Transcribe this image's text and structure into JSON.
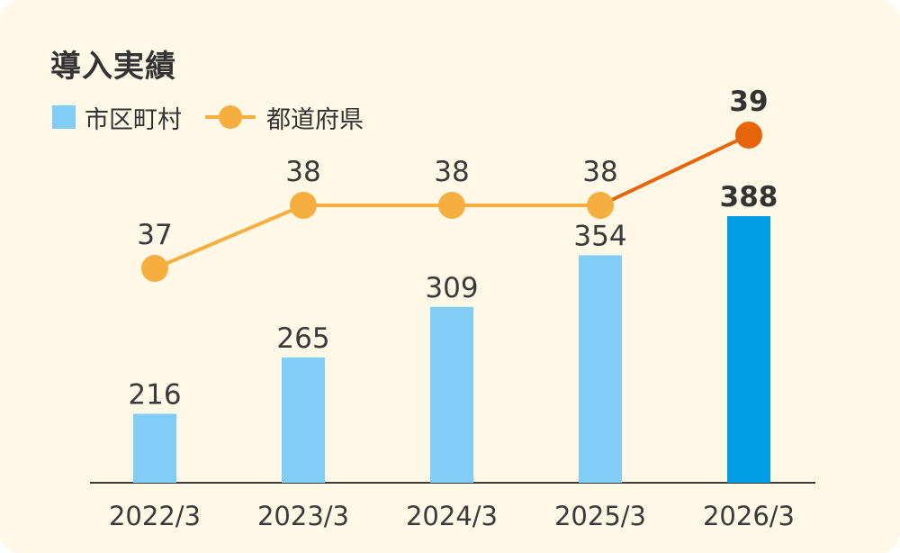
{
  "chart_data": {
    "type": "bar",
    "title": "導入実績",
    "categories": [
      "2022/3",
      "2023/3",
      "2024/3",
      "2025/3",
      "2026/3"
    ],
    "series": [
      {
        "name": "市区町村",
        "type": "bar",
        "values": [
          216,
          265,
          309,
          354,
          388
        ],
        "color": "#80cdf5",
        "highlight_color": "#009ee3"
      },
      {
        "name": "都道府県",
        "type": "line",
        "values": [
          37,
          38,
          38,
          38,
          39
        ],
        "color": "#f6ae3e",
        "highlight_color": "#e86409"
      }
    ],
    "highlight_category": "2026/3",
    "legend_position": "top-left",
    "grid": false
  }
}
